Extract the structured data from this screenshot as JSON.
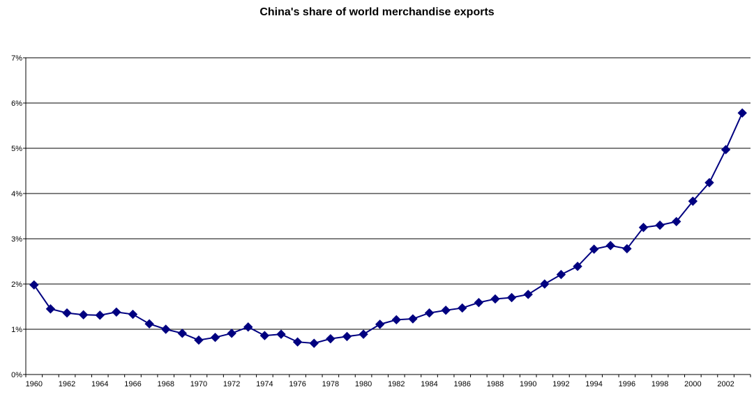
{
  "chart_data": {
    "type": "line",
    "title": "China's share of world merchandise exports",
    "xlabel": "",
    "ylabel": "",
    "ylim": [
      0,
      7
    ],
    "y_unit": "%",
    "yticks": [
      "0%",
      "1%",
      "2%",
      "3%",
      "4%",
      "5%",
      "6%",
      "7%"
    ],
    "xticks": [
      "1960",
      "1962",
      "1964",
      "1966",
      "1968",
      "1970",
      "1972",
      "1974",
      "1976",
      "1978",
      "1980",
      "1982",
      "1984",
      "1986",
      "1988",
      "1990",
      "1992",
      "1994",
      "1996",
      "1998",
      "2000",
      "2002"
    ],
    "grid": "horizontal",
    "legend": "none",
    "series_color": "#000080",
    "x": [
      1960,
      1961,
      1962,
      1963,
      1964,
      1965,
      1966,
      1967,
      1968,
      1969,
      1970,
      1971,
      1972,
      1973,
      1974,
      1975,
      1976,
      1977,
      1978,
      1979,
      1980,
      1981,
      1982,
      1983,
      1984,
      1985,
      1986,
      1987,
      1988,
      1989,
      1990,
      1991,
      1992,
      1993,
      1994,
      1995,
      1996,
      1997,
      1998,
      1999,
      2000,
      2001,
      2002,
      2003
    ],
    "series": [
      {
        "values": [
          1.98,
          1.45,
          1.36,
          1.32,
          1.31,
          1.38,
          1.33,
          1.12,
          1.0,
          0.91,
          0.76,
          0.82,
          0.91,
          1.05,
          0.86,
          0.89,
          0.72,
          0.69,
          0.79,
          0.84,
          0.89,
          1.11,
          1.21,
          1.23,
          1.36,
          1.42,
          1.47,
          1.59,
          1.67,
          1.7,
          1.77,
          2.0,
          2.21,
          2.39,
          2.77,
          2.85,
          2.78,
          3.25,
          3.3,
          3.38,
          3.83,
          4.24,
          4.97,
          5.78
        ]
      }
    ]
  }
}
